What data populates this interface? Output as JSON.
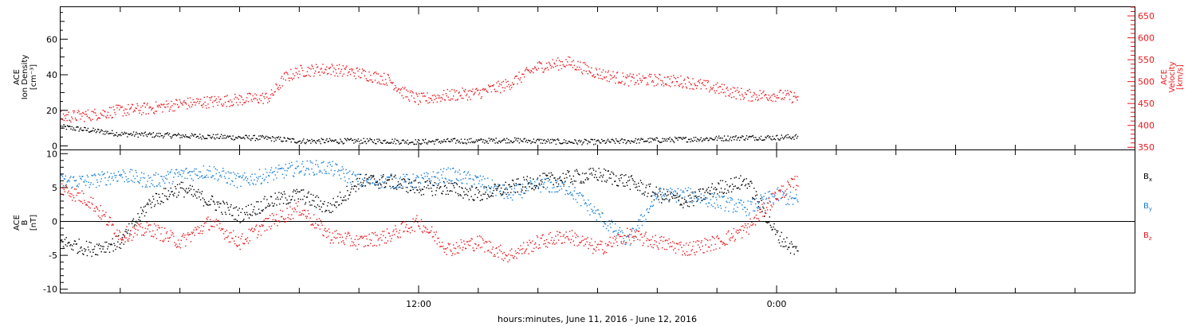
{
  "xlabel": "hours:minutes, June 11, 2016 - June 12, 2016",
  "x_ticks": [
    {
      "hours": 12,
      "label": "12:00"
    },
    {
      "hours": 24,
      "label": "0:00"
    }
  ],
  "colors": {
    "black": "#000000",
    "red": "#e8191e",
    "blue": "#1a7fd6"
  },
  "chart_data": [
    {
      "type": "scatter",
      "panel": "top",
      "ylabel_left": [
        "ACE",
        "Ion Density",
        "[cm⁻³]"
      ],
      "ylabel_right": [
        "ACE",
        "Velocity",
        "[km/s]"
      ],
      "xlim_hours": [
        0,
        36
      ],
      "ylim_left": [
        -2,
        78
      ],
      "ylim_right": [
        345,
        670
      ],
      "left_ticks": [
        {
          "v": 0,
          "label": "0"
        },
        {
          "v": 20,
          "label": "20"
        },
        {
          "v": 40,
          "label": "40"
        },
        {
          "v": 60,
          "label": "60"
        }
      ],
      "right_ticks": [
        {
          "v": 350,
          "label": "350"
        },
        {
          "v": 400,
          "label": "400"
        },
        {
          "v": 450,
          "label": "450"
        },
        {
          "v": 500,
          "label": "500"
        },
        {
          "v": 550,
          "label": "550"
        },
        {
          "v": 600,
          "label": "600"
        },
        {
          "v": 650,
          "label": "650"
        }
      ],
      "series": [
        {
          "name": "Ion Density",
          "axis": "left",
          "color": "#000000",
          "x": [
            0,
            1,
            2,
            3,
            4,
            5,
            6,
            7,
            8,
            9,
            10,
            11,
            12,
            13,
            14,
            15,
            16,
            17,
            18,
            19,
            20,
            21,
            22,
            23,
            24,
            24.7
          ],
          "y": [
            11,
            9,
            7,
            6.5,
            6,
            5.5,
            5,
            4.5,
            3,
            3,
            3,
            3,
            2.5,
            3,
            3,
            3.5,
            3,
            2.5,
            2.5,
            3,
            3.5,
            4,
            4.5,
            5,
            5,
            5.5
          ]
        },
        {
          "name": "Velocity",
          "axis": "right",
          "color": "#e8191e",
          "x": [
            0,
            1,
            2,
            3,
            4,
            5,
            6,
            7,
            7.5,
            8,
            9,
            10,
            11,
            11.5,
            12,
            13,
            14,
            15,
            16,
            17,
            18,
            19,
            20,
            21,
            22,
            23,
            24,
            24.7
          ],
          "y": [
            420,
            425,
            435,
            440,
            450,
            455,
            460,
            465,
            510,
            525,
            530,
            520,
            505,
            475,
            460,
            470,
            475,
            495,
            535,
            545,
            520,
            505,
            505,
            500,
            485,
            470,
            470,
            465
          ]
        }
      ]
    },
    {
      "type": "scatter",
      "panel": "bottom",
      "ylabel_left": [
        "ACE",
        "B",
        "[nT]"
      ],
      "xlim_hours": [
        0,
        36
      ],
      "ylim": [
        -10.5,
        10.5
      ],
      "ticks": [
        {
          "v": -10,
          "label": "-10"
        },
        {
          "v": -5,
          "label": "-5"
        },
        {
          "v": 0,
          "label": "0"
        },
        {
          "v": 5,
          "label": "5"
        },
        {
          "v": 10,
          "label": "10"
        }
      ],
      "series": [
        {
          "name": "Bx",
          "label_main": "B",
          "label_sub": "x",
          "color": "#000000",
          "x": [
            0,
            1,
            2,
            3,
            4,
            5,
            6,
            7,
            8,
            9,
            10,
            11,
            12,
            13,
            14,
            15,
            16,
            17,
            18,
            19,
            20,
            21,
            22,
            23,
            24,
            24.7
          ],
          "y": [
            -3,
            -4,
            -3,
            3,
            5,
            3,
            1,
            3,
            4,
            2,
            6,
            6,
            5,
            5,
            4,
            5,
            6,
            6.5,
            7,
            6,
            4,
            3,
            5,
            6,
            -2,
            -4.5
          ]
        },
        {
          "name": "By",
          "label_main": "B",
          "label_sub": "y",
          "color": "#1a7fd6",
          "x": [
            0,
            1,
            2,
            3,
            4,
            5,
            6,
            7,
            8,
            9,
            10,
            11,
            12,
            13,
            14,
            15,
            16,
            17,
            18,
            19,
            20,
            21,
            22,
            23,
            24,
            24.7
          ],
          "y": [
            6,
            6,
            7,
            6,
            7,
            7.5,
            6,
            7,
            8,
            8,
            6,
            6,
            6,
            7,
            6,
            4,
            5.5,
            5,
            1,
            -3,
            4,
            4,
            3,
            2,
            4,
            3
          ]
        },
        {
          "name": "Bz",
          "label_main": "B",
          "label_sub": "z",
          "color": "#e8191e",
          "x": [
            0,
            1,
            2,
            3,
            4,
            5,
            6,
            7,
            8,
            9,
            10,
            11,
            12,
            13,
            14,
            15,
            16,
            17,
            18,
            19,
            20,
            21,
            22,
            23,
            24,
            24.7
          ],
          "y": [
            5,
            3,
            -2,
            -1,
            -3,
            0,
            -3,
            0,
            2,
            -2,
            -3,
            -2,
            0,
            -4,
            -3,
            -5,
            -3,
            -2,
            -4,
            -2,
            -3,
            -4,
            -3,
            -1,
            4,
            6
          ]
        }
      ]
    }
  ]
}
